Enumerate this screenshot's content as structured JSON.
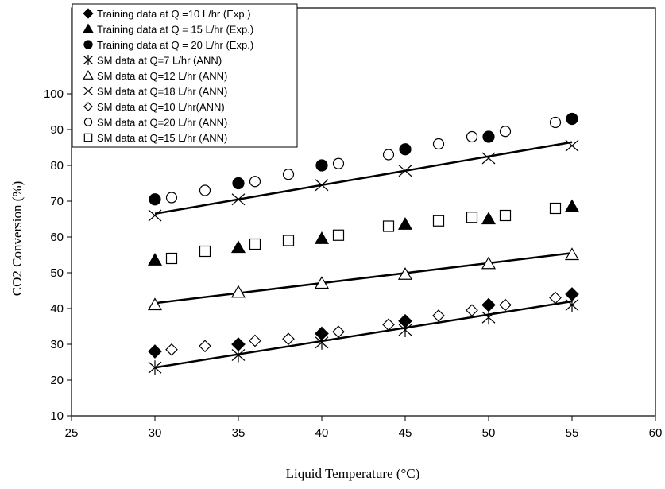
{
  "chart_data": {
    "type": "scatter",
    "xlabel": "Liquid Temperature (°C)",
    "ylabel": "CO2 Conversion (%)",
    "xlim": [
      25,
      60
    ],
    "ylim": [
      10,
      100
    ],
    "xticks": [
      25,
      30,
      35,
      40,
      45,
      50,
      55,
      60
    ],
    "yticks": [
      10,
      20,
      30,
      40,
      50,
      60,
      70,
      80,
      90,
      100
    ],
    "grid": false,
    "legend_position": "top-left",
    "series": [
      {
        "name": "Training data at Q =10 L/hr (Exp.)",
        "marker": "diamond-filled",
        "x": [
          30,
          35,
          40,
          45,
          50,
          55
        ],
        "y": [
          28,
          30,
          33,
          36.5,
          41,
          44
        ]
      },
      {
        "name": "Training data at Q = 15 L/hr (Exp.)",
        "marker": "triangle-filled",
        "x": [
          30,
          35,
          40,
          45,
          50,
          55
        ],
        "y": [
          53.5,
          57,
          59.5,
          63.5,
          65,
          68.5
        ]
      },
      {
        "name": "Training data at Q = 20 L/hr (Exp.)",
        "marker": "circle-filled",
        "x": [
          30,
          35,
          40,
          45,
          50,
          55
        ],
        "y": [
          70.5,
          75,
          80,
          84.5,
          88,
          93
        ]
      },
      {
        "name": "SM data at Q=7 L/hr (ANN)",
        "marker": "asterisk",
        "x": [
          30,
          35,
          40,
          45,
          50,
          55
        ],
        "y": [
          23.5,
          27,
          30.5,
          34,
          37.5,
          41
        ]
      },
      {
        "name": "SM data at Q=12 L/hr (ANN)",
        "marker": "triangle-open",
        "x": [
          30,
          35,
          40,
          45,
          50,
          55
        ],
        "y": [
          41,
          44.5,
          47,
          49.5,
          52.5,
          55
        ]
      },
      {
        "name": "SM data at Q=18 L/hr (ANN)",
        "marker": "x",
        "x": [
          30,
          35,
          40,
          45,
          50,
          55
        ],
        "y": [
          66,
          70.5,
          74.5,
          78.5,
          82,
          85.5
        ]
      },
      {
        "name": "SM data at Q=10 L/hr(ANN)",
        "marker": "diamond-open",
        "x": [
          31,
          33,
          36,
          38,
          41,
          44,
          47,
          49,
          51,
          54
        ],
        "y": [
          28.5,
          29.5,
          31,
          31.5,
          33.5,
          35.5,
          38,
          39.5,
          41,
          43
        ]
      },
      {
        "name": "SM data at Q=20 L/hr (ANN)",
        "marker": "circle-open",
        "x": [
          31,
          33,
          36,
          38,
          41,
          44,
          47,
          49,
          51,
          54
        ],
        "y": [
          71,
          73,
          75.5,
          77.5,
          80.5,
          83,
          86,
          88,
          89.5,
          92
        ]
      },
      {
        "name": "SM data at Q=15 L/hr (ANN)",
        "marker": "square-open",
        "x": [
          31,
          33,
          36,
          38,
          41,
          44,
          47,
          49,
          51,
          54
        ],
        "y": [
          54,
          56,
          58,
          59,
          60.5,
          63,
          64.5,
          65.5,
          66,
          68
        ]
      }
    ],
    "trend_lines": [
      {
        "x": [
          30,
          55
        ],
        "y": [
          23.5,
          42
        ]
      },
      {
        "x": [
          30,
          55
        ],
        "y": [
          41.5,
          55.5
        ]
      },
      {
        "x": [
          30,
          55
        ],
        "y": [
          66.5,
          86.5
        ]
      }
    ]
  }
}
